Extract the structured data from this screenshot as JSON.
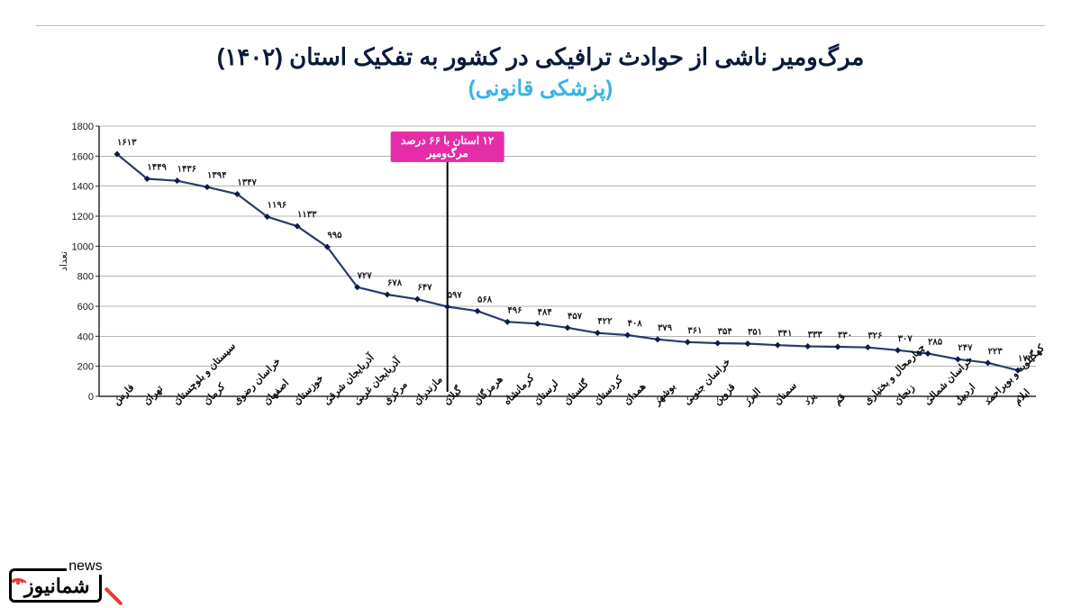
{
  "title_main": "مرگ‌ومیر ناشی از حوادث ترافیکی در کشور به تفکیک استان (۱۴۰۲)",
  "title_sub": "(پزشکی قانونی)",
  "chart": {
    "type": "line",
    "yaxis_title": "تعداد",
    "ylim": [
      0,
      1800
    ],
    "ytick_step": 200,
    "tick_fontsize": 11,
    "title_fontsize": 26,
    "sub_fontsize": 24,
    "sub_color": "#3bb3e6",
    "axis_color": "#2a2a2a",
    "grid_color": "#6a6a6a",
    "grid_width": 0.5,
    "marker": "diamond",
    "marker_size": 7,
    "marker_color": "#0a1a4a",
    "line_color": "#2b3b6b",
    "line_width": 2.2,
    "background_color": "#ffffff",
    "x_label_rotation_deg": 45,
    "value_label_rotation_deg": 90,
    "callout": {
      "index": 11,
      "label_line1": "۱۲ استان با ۶۶ درصد",
      "label_line2": "مرگ‌ومیر",
      "box_color": "#e62da8",
      "text_color": "#ffffff",
      "stem_color": "#000000"
    },
    "categories": [
      "فارس",
      "تهران",
      "سیستان و بلوچستان",
      "کرمان",
      "خراسان رضوی",
      "اصفهان",
      "خوزستان",
      "آذربایجان شرقی",
      "آذربایجان غربی",
      "مرکزی",
      "مازندران",
      "گیلان",
      "هرمزگان",
      "کرمانشاه",
      "لرستان",
      "گلستان",
      "کردستان",
      "همدان",
      "بوشهر",
      "خراسان جنوبی",
      "قزوین",
      "البرز",
      "سمنان",
      "یزد",
      "قم",
      "چهارمحال و بختیاری",
      "زنجان",
      "خراسان شمالی",
      "اردبیل",
      "کهگیلویه و بویراحمد",
      "ایلام"
    ],
    "values": [
      1613,
      1449,
      1436,
      1394,
      1347,
      1196,
      1133,
      995,
      727,
      678,
      647,
      597,
      568,
      496,
      484,
      457,
      422,
      408,
      379,
      361,
      354,
      351,
      341,
      333,
      330,
      326,
      307,
      285,
      247,
      223,
      173
    ],
    "value_labels_fa": [
      "۱۶۱۳",
      "۱۴۴۹",
      "۱۴۳۶",
      "۱۳۹۴",
      "۱۳۴۷",
      "۱۱۹۶",
      "۱۱۳۳",
      "۹۹۵",
      "۷۲۷",
      "۶۷۸",
      "۶۴۷",
      "۵۹۷",
      "۵۶۸",
      "۴۹۶",
      "۴۸۴",
      "۴۵۷",
      "۴۲۲",
      "۴۰۸",
      "۳۷۹",
      "۳۶۱",
      "۳۵۴",
      "۳۵۱",
      "۳۴۱",
      "۳۳۳",
      "۳۳۰",
      "۳۲۶",
      "۳۰۷",
      "۲۸۵",
      "۲۴۷",
      "۲۲۳",
      "۱۷۳"
    ]
  },
  "logo": {
    "main": "شمانیوز",
    "sub": "news"
  }
}
